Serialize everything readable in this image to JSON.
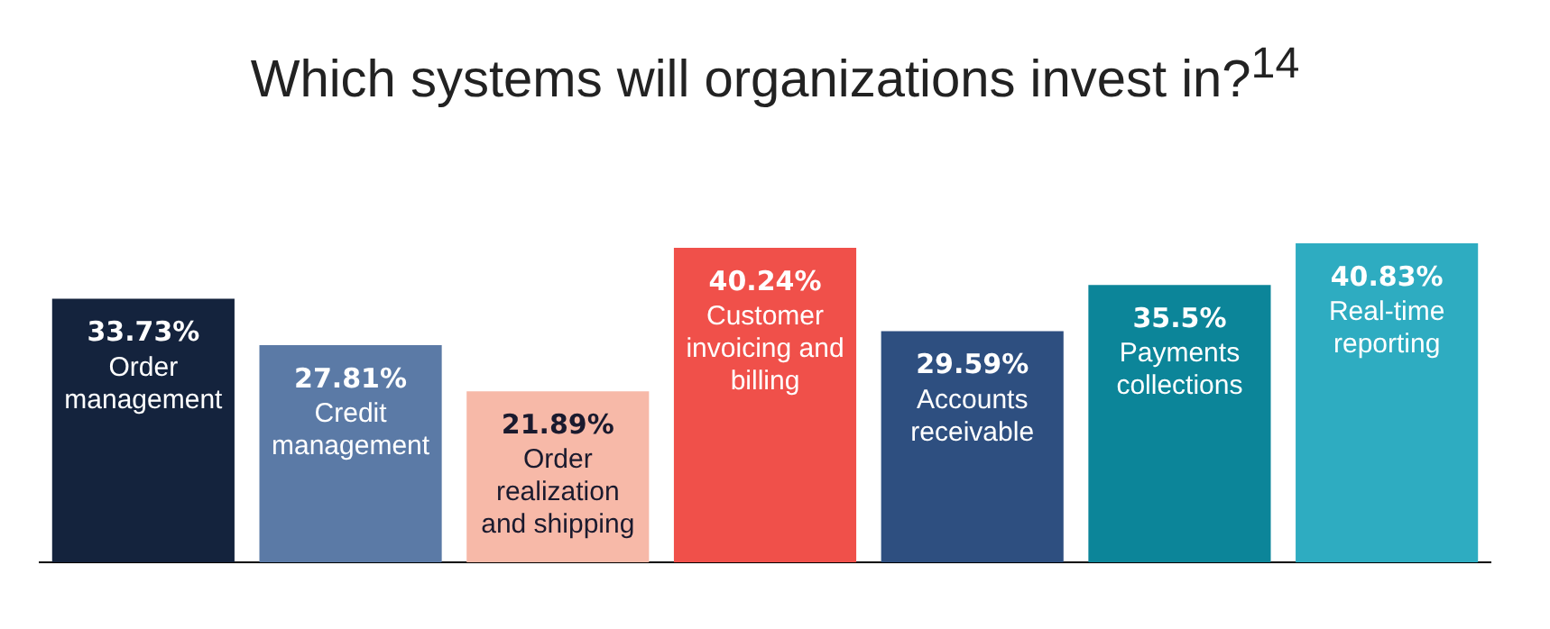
{
  "chart_data": {
    "type": "bar",
    "title": "Which systems will organizations invest in?$^{14}$",
    "categories": [
      "Order management",
      "Credit management",
      "Order realization and shipping",
      "Customer invoicing and billing",
      "Accounts receivable",
      "Payments collections",
      "Real-time reporting"
    ],
    "values": [
      33.73,
      27.81,
      21.89,
      40.24,
      29.59,
      35.5,
      40.83
    ],
    "value_labels": [
      "33.73%",
      "27.81%",
      "21.89%",
      "40.24%",
      "29.59%",
      "35.5%",
      "40.83%"
    ],
    "colors": [
      "#14233d",
      "#5b7aa6",
      "#f7b9a8",
      "#f0504a",
      "#2e4f80",
      "#0c8599",
      "#2eacc1"
    ],
    "legend": false,
    "grid": false
  }
}
